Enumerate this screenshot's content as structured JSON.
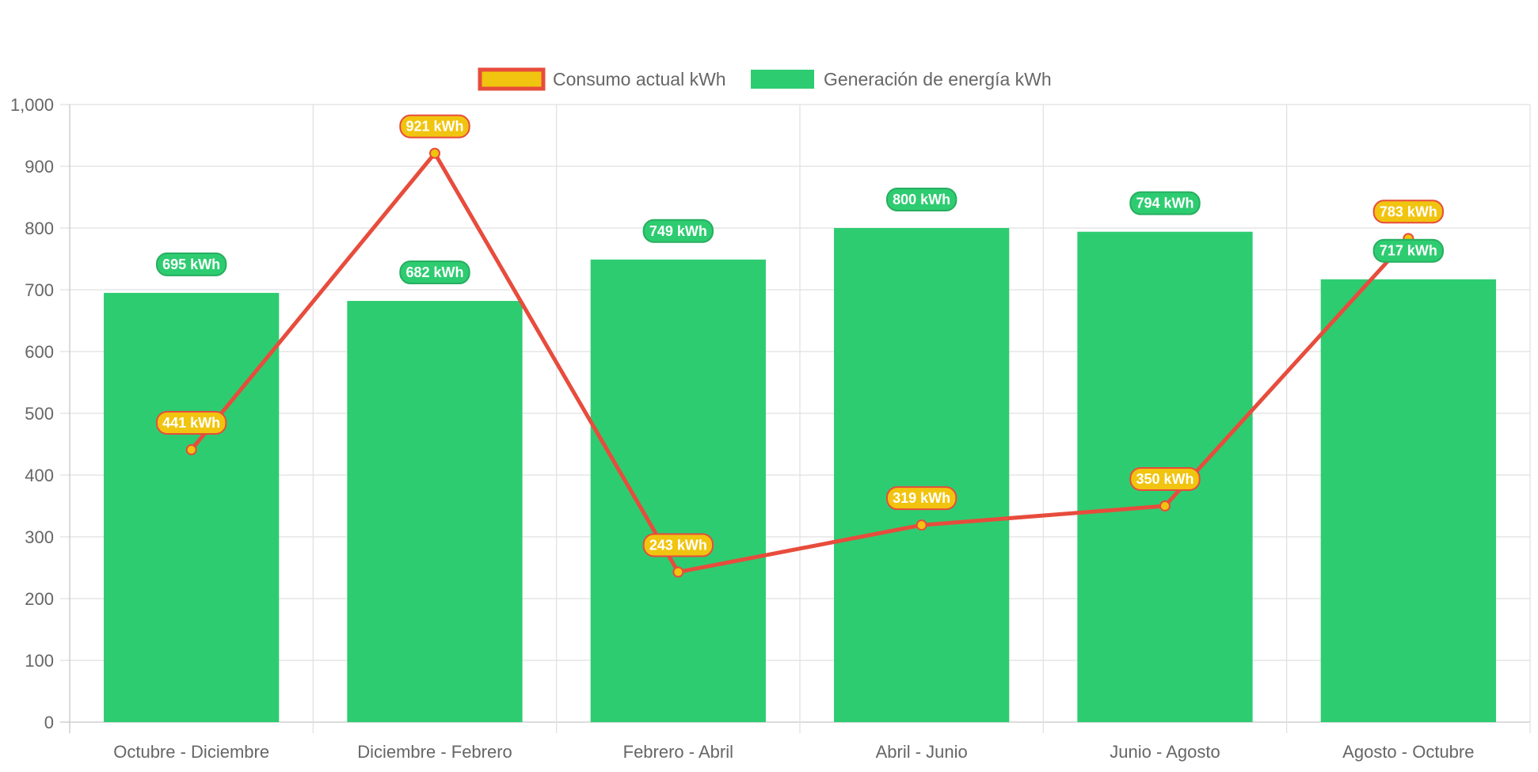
{
  "chart_data": {
    "type": "bar",
    "categories": [
      "Octubre - Diciembre",
      "Diciembre - Febrero",
      "Febrero - Abril",
      "Abril - Junio",
      "Junio - Agosto",
      "Agosto - Octubre"
    ],
    "series": [
      {
        "name": "Generación de energía kWh",
        "type": "bar",
        "values": [
          695,
          682,
          749,
          800,
          794,
          717
        ],
        "labels": [
          "695 kWh",
          "682 kWh",
          "749 kWh",
          "800 kWh",
          "794 kWh",
          "717 kWh"
        ],
        "color": "#2ecc71"
      },
      {
        "name": "Consumo actual kWh",
        "type": "line",
        "values": [
          441,
          921,
          243,
          319,
          350,
          783
        ],
        "labels": [
          "441 kWh",
          "921 kWh",
          "243 kWh",
          "319 kWh",
          "350 kWh",
          "783 kWh"
        ],
        "color": "#e74c3c",
        "point_color": "#f1c40f"
      }
    ],
    "legend": {
      "position": "top",
      "items": [
        "Consumo actual kWh",
        "Generación de energía kWh"
      ]
    },
    "ylim": [
      0,
      1000
    ],
    "y_ticks": [
      "0",
      "100",
      "200",
      "300",
      "400",
      "500",
      "600",
      "700",
      "800",
      "900",
      "1,000"
    ],
    "grid": true,
    "title": "",
    "xlabel": "",
    "ylabel": ""
  }
}
